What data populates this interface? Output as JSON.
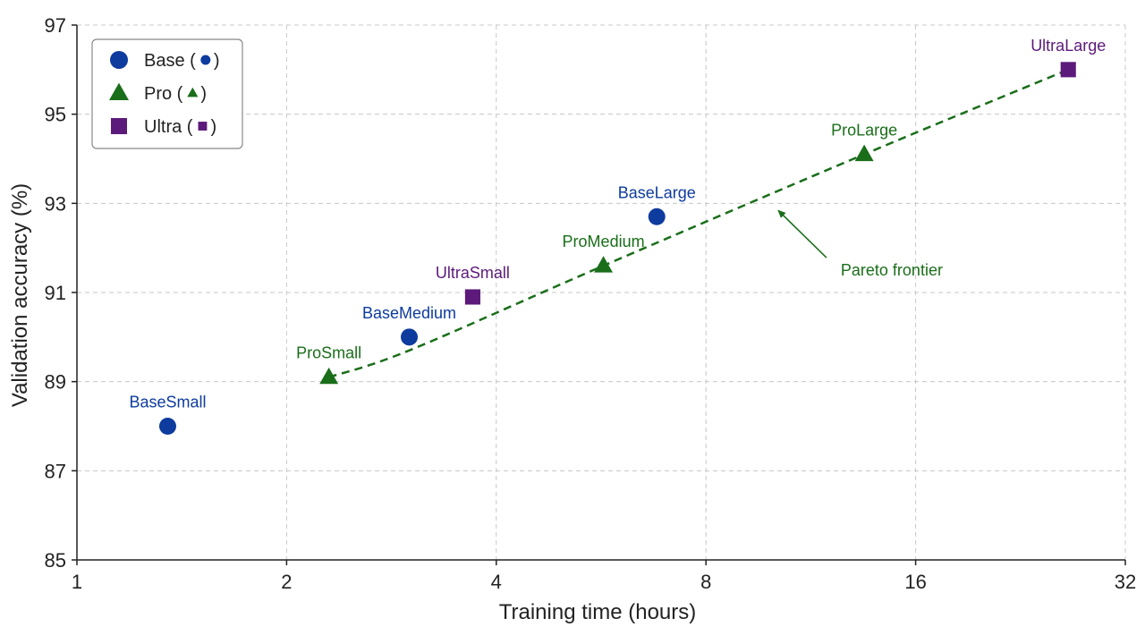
{
  "colors": {
    "Base": "#0d3b9e",
    "Pro": "#1a6e1a",
    "Ultra": "#5c1a7a",
    "grid": "#c8c8c8",
    "axis": "#222222"
  },
  "legend": {
    "placement": "top-left",
    "entries": [
      {
        "series": "Base",
        "label": "Base (",
        "suffix": ")",
        "marker": "circle"
      },
      {
        "series": "Pro",
        "label": "Pro (",
        "suffix": ")",
        "marker": "triangle"
      },
      {
        "series": "Ultra",
        "label": "Ultra (",
        "suffix": ")",
        "marker": "square"
      }
    ]
  },
  "chart_data": {
    "type": "scatter",
    "title": "",
    "xlabel": "Training time (hours)",
    "ylabel": "Validation accuracy (%)",
    "xscale": "log2",
    "xlim": [
      1,
      32
    ],
    "ylim": [
      85,
      97
    ],
    "xticks": [
      1,
      2,
      4,
      8,
      16,
      32
    ],
    "yticks": [
      85,
      87,
      89,
      91,
      93,
      95,
      97
    ],
    "grid": true,
    "series": [
      {
        "name": "Base",
        "marker": "circle",
        "points": [
          {
            "label": "BaseSmall",
            "x": 1.35,
            "y": 88.0
          },
          {
            "label": "BaseMedium",
            "x": 3.0,
            "y": 90.0
          },
          {
            "label": "BaseLarge",
            "x": 6.8,
            "y": 92.7
          }
        ]
      },
      {
        "name": "Pro",
        "marker": "triangle",
        "points": [
          {
            "label": "ProSmall",
            "x": 2.3,
            "y": 89.1
          },
          {
            "label": "ProMedium",
            "x": 5.7,
            "y": 91.6
          },
          {
            "label": "ProLarge",
            "x": 13.5,
            "y": 94.1
          }
        ]
      },
      {
        "name": "Ultra",
        "marker": "square",
        "points": [
          {
            "label": "UltraSmall",
            "x": 3.7,
            "y": 90.9
          },
          {
            "label": "UltraLarge",
            "x": 26.5,
            "y": 96.0
          }
        ]
      }
    ],
    "frontier": {
      "style": "dashed",
      "series": "Pro",
      "points": [
        [
          2.3,
          89.1
        ],
        [
          3.0,
          89.7
        ],
        [
          5.7,
          91.6
        ],
        [
          13.5,
          94.1
        ],
        [
          26.5,
          96.0
        ]
      ]
    },
    "annotations": [
      {
        "text": "Pareto frontier",
        "x": 12.2,
        "y": 91.5,
        "arrow_to": [
          10.1,
          92.9
        ]
      }
    ]
  }
}
